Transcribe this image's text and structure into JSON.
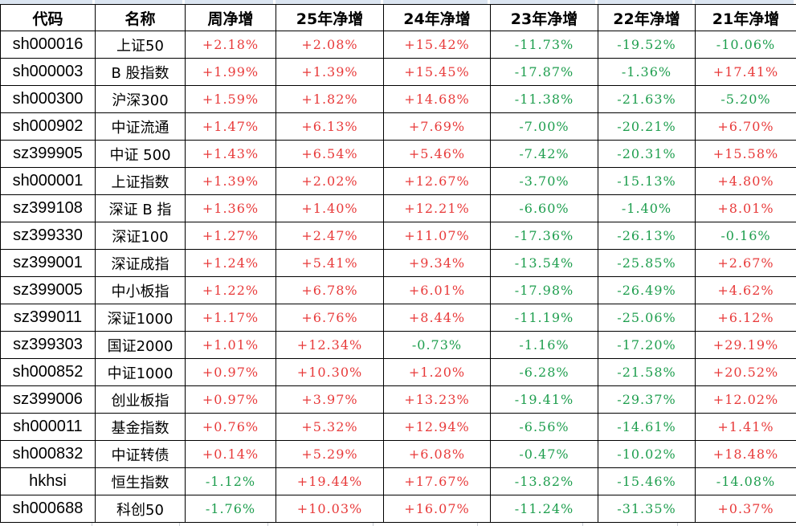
{
  "chart_data": {
    "type": "table",
    "columns": [
      "代码",
      "名称",
      "周净增",
      "25年净增",
      "24年净增",
      "23年净增",
      "22年净增",
      "21年净增"
    ],
    "rows": [
      [
        "sh000016",
        "上证50",
        "+2.18%",
        "+2.08%",
        "+15.42%",
        "-11.73%",
        "-19.52%",
        "-10.06%"
      ],
      [
        "sh000003",
        "B 股指数",
        "+1.99%",
        "+1.39%",
        "+15.45%",
        "-17.87%",
        "-1.36%",
        "+17.41%"
      ],
      [
        "sh000300",
        "沪深300",
        "+1.59%",
        "+1.82%",
        "+14.68%",
        "-11.38%",
        "-21.63%",
        "-5.20%"
      ],
      [
        "sh000902",
        "中证流通",
        "+1.47%",
        "+6.13%",
        "+7.69%",
        "-7.00%",
        "-20.21%",
        "+6.70%"
      ],
      [
        "sz399905",
        "中证 500",
        "+1.43%",
        "+6.54%",
        "+5.46%",
        "-7.42%",
        "-20.31%",
        "+15.58%"
      ],
      [
        "sh000001",
        "上证指数",
        "+1.39%",
        "+2.02%",
        "+12.67%",
        "-3.70%",
        "-15.13%",
        "+4.80%"
      ],
      [
        "sz399108",
        "深证 B 指",
        "+1.36%",
        "+1.40%",
        "+12.21%",
        "-6.60%",
        "-1.40%",
        "+8.01%"
      ],
      [
        "sz399330",
        "深证100",
        "+1.27%",
        "+2.47%",
        "+11.07%",
        "-17.36%",
        "-26.13%",
        "-0.16%"
      ],
      [
        "sz399001",
        "深证成指",
        "+1.24%",
        "+5.41%",
        "+9.34%",
        "-13.54%",
        "-25.85%",
        "+2.67%"
      ],
      [
        "sz399005",
        "中小板指",
        "+1.22%",
        "+6.78%",
        "+6.01%",
        "-17.98%",
        "-26.49%",
        "+4.62%"
      ],
      [
        "sz399011",
        "深证1000",
        "+1.17%",
        "+6.76%",
        "+8.44%",
        "-11.19%",
        "-25.06%",
        "+6.12%"
      ],
      [
        "sz399303",
        "国证2000",
        "+1.01%",
        "+12.34%",
        "-0.73%",
        "-1.16%",
        "-17.20%",
        "+29.19%"
      ],
      [
        "sh000852",
        "中证1000",
        "+0.97%",
        "+10.30%",
        "+1.20%",
        "-6.28%",
        "-21.58%",
        "+20.52%"
      ],
      [
        "sz399006",
        "创业板指",
        "+0.97%",
        "+3.97%",
        "+13.23%",
        "-19.41%",
        "-29.37%",
        "+12.02%"
      ],
      [
        "sh000011",
        "基金指数",
        "+0.76%",
        "+5.32%",
        "+12.94%",
        "-6.56%",
        "-14.61%",
        "+1.41%"
      ],
      [
        "sh000832",
        "中证转债",
        "+0.14%",
        "+5.29%",
        "+6.08%",
        "-0.47%",
        "-10.02%",
        "+18.48%"
      ],
      [
        "hkhsi",
        "恒生指数",
        "-1.12%",
        "+19.44%",
        "+17.67%",
        "-13.82%",
        "-15.46%",
        "-14.08%"
      ],
      [
        "sh000688",
        "科创50",
        "-1.76%",
        "+10.03%",
        "+16.07%",
        "-11.24%",
        "-31.35%",
        "+0.37%"
      ]
    ]
  },
  "colors": {
    "positive_text": "#e83a3a",
    "negative_text": "#1e9e4e",
    "header_text": "#000000",
    "gridline": "#000000",
    "adjacent_row_fill": "#dbe5f1"
  }
}
